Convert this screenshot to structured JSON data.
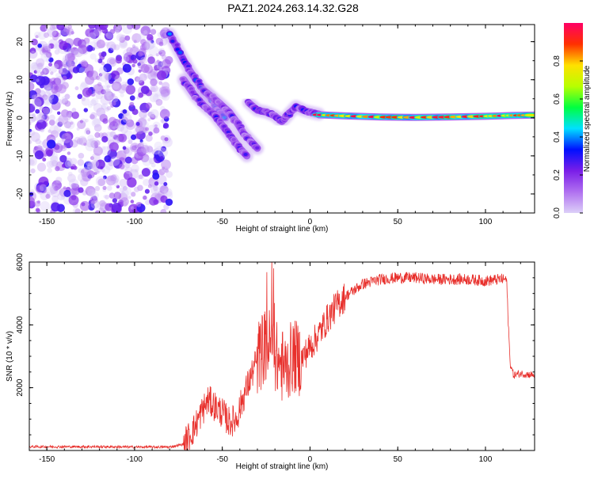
{
  "title": "PAZ1.2024.263.14.32.G28",
  "chart_data": [
    {
      "type": "heatmap",
      "xlabel": "Height of straight line (km)",
      "ylabel": "Frequency (Hz)",
      "xlim": [
        -160,
        128
      ],
      "ylim": [
        -25,
        24.5
      ],
      "x_ticks": [
        -150,
        -100,
        -50,
        0,
        50,
        100
      ],
      "x_tick_labels": [
        "-150",
        "-100",
        "-50",
        "0",
        "50",
        "100"
      ],
      "y_ticks": [
        -20,
        -10,
        0,
        10,
        20
      ],
      "y_tick_labels": [
        "-20",
        "-10",
        "0",
        "10",
        "20"
      ],
      "colorbar": {
        "label": "Normalized spectral amplitude",
        "range": [
          0,
          1
        ],
        "ticks": [
          0.0,
          0.2,
          0.4,
          0.6,
          0.8
        ],
        "tick_labels": [
          "0.0",
          "0.2",
          "0.4",
          "0.6",
          "0.8"
        ],
        "colors": [
          "#dcd0f8",
          "#b070f0",
          "#7a1ee8",
          "#0010ff",
          "#00e0ff",
          "#00ff40",
          "#b8ff00",
          "#ffe000",
          "#ff3000",
          "#ff0066"
        ]
      },
      "ridges": [
        {
          "name": "",
          "points": [
            [
              -80,
              22.0
            ],
            [
              -73,
              16
            ],
            [
              -68,
              12
            ],
            [
              -62,
              8
            ],
            [
              -56,
              5
            ],
            [
              -52,
              2
            ],
            [
              -48,
              0
            ]
          ],
          "amplitude": 0.35
        },
        {
          "name": "",
          "points": [
            [
              -72,
              10
            ],
            [
              -66,
              6
            ],
            [
              -60,
              3
            ],
            [
              -55,
              1.0
            ],
            [
              -50,
              -2
            ],
            [
              -45,
              -5
            ],
            [
              -40,
              -8
            ],
            [
              -36,
              -10
            ]
          ],
          "amplitude": 0.28
        },
        {
          "name": "",
          "points": [
            [
              -60,
              7
            ],
            [
              -52,
              4
            ],
            [
              -46,
              1.5
            ],
            [
              -42,
              -1
            ],
            [
              -38,
              -4
            ],
            [
              -34,
              -6
            ],
            [
              -30,
              -8
            ]
          ],
          "amplitude": 0.25
        },
        {
          "name": "",
          "points": [
            [
              -35,
              4
            ],
            [
              -30,
              2
            ],
            [
              -25,
              1.5
            ],
            [
              -20,
              0.5
            ],
            [
              -16,
              -1
            ],
            [
              -12,
              1
            ],
            [
              -8,
              3
            ],
            [
              -4,
              2
            ],
            [
              0,
              1.5
            ],
            [
              5,
              1.0
            ]
          ],
          "amplitude": 0.3
        },
        {
          "name": "",
          "points": [
            [
              5,
              0.8
            ],
            [
              20,
              0.5
            ],
            [
              40,
              0.2
            ],
            [
              60,
              0.1
            ],
            [
              80,
              0.2
            ],
            [
              100,
              0.4
            ],
            [
              115,
              0.6
            ],
            [
              128,
              0.7
            ]
          ],
          "amplitude": 0.95
        }
      ]
    },
    {
      "type": "line",
      "xlabel": "Height of straight line (km)",
      "ylabel": "SNR (10 * v/v)",
      "xlim": [
        -160,
        128
      ],
      "ylim": [
        0,
        6000
      ],
      "x_ticks": [
        -150,
        -100,
        -50,
        0,
        50,
        100
      ],
      "x_tick_labels": [
        "-150",
        "-100",
        "-50",
        "0",
        "50",
        "100"
      ],
      "y_ticks": [
        2000,
        4000,
        6000
      ],
      "y_tick_labels": [
        "2000",
        "4000",
        "6000"
      ],
      "series": [
        {
          "name": "",
          "color": "#e8302c",
          "envelope": [
            [
              -160,
              120
            ],
            [
              -140,
              120
            ],
            [
              -120,
              120
            ],
            [
              -100,
              110
            ],
            [
              -80,
              110
            ],
            [
              -72,
              200
            ],
            [
              -66,
              700
            ],
            [
              -62,
              1200
            ],
            [
              -58,
              1600
            ],
            [
              -54,
              1400
            ],
            [
              -50,
              1200
            ],
            [
              -46,
              900
            ],
            [
              -42,
              1000
            ],
            [
              -38,
              1700
            ],
            [
              -34,
              2300
            ],
            [
              -30,
              2900
            ],
            [
              -26,
              3300
            ],
            [
              -22,
              3400
            ],
            [
              -18,
              2800
            ],
            [
              -14,
              2600
            ],
            [
              -10,
              3000
            ],
            [
              -5,
              2900
            ],
            [
              0,
              3300
            ],
            [
              5,
              3700
            ],
            [
              10,
              4200
            ],
            [
              15,
              4600
            ],
            [
              20,
              4900
            ],
            [
              25,
              5100
            ],
            [
              30,
              5300
            ],
            [
              40,
              5450
            ],
            [
              50,
              5500
            ],
            [
              60,
              5500
            ],
            [
              70,
              5450
            ],
            [
              80,
              5450
            ],
            [
              90,
              5450
            ],
            [
              100,
              5400
            ],
            [
              108,
              5450
            ],
            [
              112,
              5450
            ],
            [
              114,
              2800
            ],
            [
              116,
              2400
            ],
            [
              120,
              2450
            ],
            [
              128,
              2400
            ]
          ]
        }
      ]
    }
  ]
}
